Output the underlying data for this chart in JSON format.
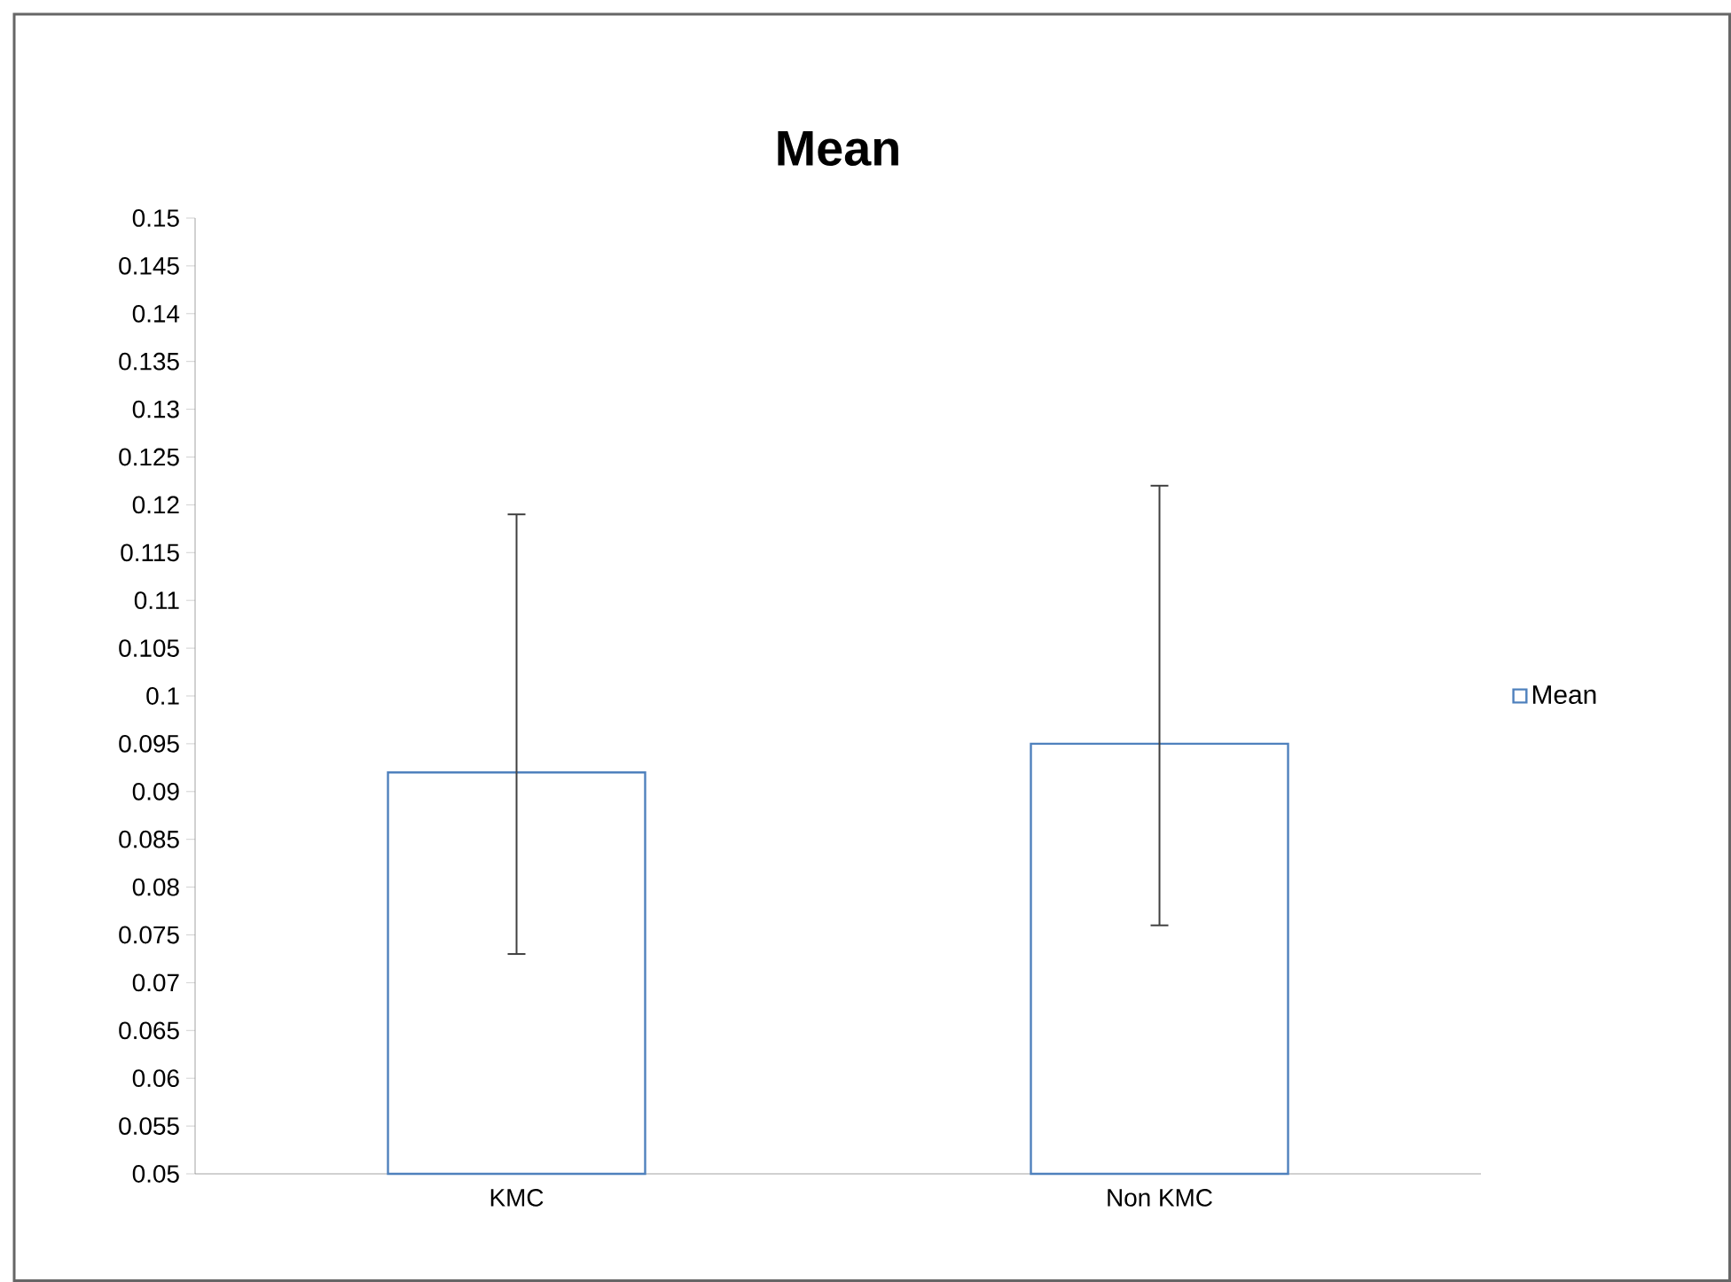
{
  "chart_data": {
    "type": "bar",
    "title": "Mean",
    "categories": [
      "KMC",
      "Non KMC"
    ],
    "series": [
      {
        "name": "Mean",
        "color": "#4f81bd",
        "values": [
          0.092,
          0.095
        ],
        "errors": [
          [
            0.073,
            0.119
          ],
          [
            0.076,
            0.122
          ]
        ]
      }
    ],
    "ylim": [
      0.05,
      0.15
    ],
    "yticks": [
      0.05,
      0.055,
      0.06,
      0.065,
      0.07,
      0.075,
      0.08,
      0.085,
      0.09,
      0.095,
      0.1,
      0.105,
      0.11,
      0.115,
      0.12,
      0.125,
      0.13,
      0.135,
      0.14,
      0.145,
      0.15
    ],
    "legend": "right"
  }
}
